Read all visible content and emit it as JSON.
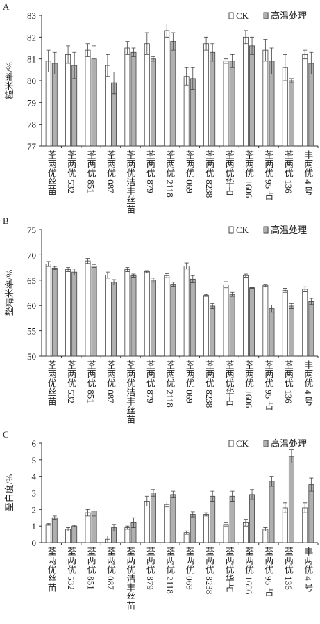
{
  "chart_data": [
    {
      "type": "bar",
      "label": "A",
      "y_label": "糙米率/%",
      "legend": "upper right",
      "categories": [
        "荃两优丝苗",
        "荃两优 532",
        "荃两优 851",
        "荃两优 087",
        "荃两优洁丰丝苗",
        "荃两优 879",
        "荃两优 2118",
        "荃两优 069",
        "荃两优 8238",
        "荃两优华占",
        "荃两优 1606",
        "荃两优 95 占",
        "荃两优 136",
        "丰两优 4 号"
      ],
      "ylim": [
        77,
        83
      ],
      "yticks": [
        77,
        78,
        79,
        80,
        81,
        82,
        83
      ],
      "series": [
        {
          "name": "CK",
          "color": "#ffffff",
          "values": [
            80.9,
            81.2,
            81.4,
            80.7,
            81.5,
            81.7,
            82.3,
            80.2,
            81.7,
            80.9,
            82.0,
            81.4,
            80.6,
            81.2
          ],
          "errors": [
            0.5,
            0.4,
            0.3,
            0.5,
            0.3,
            0.5,
            0.3,
            0.4,
            0.3,
            0.1,
            0.3,
            0.5,
            0.6,
            0.2
          ]
        },
        {
          "name": "高温处理",
          "color": "#b0b0b0",
          "values": [
            80.8,
            80.7,
            81.0,
            79.9,
            81.3,
            81.0,
            81.8,
            80.1,
            81.3,
            80.9,
            81.6,
            80.9,
            80.0,
            80.8
          ],
          "errors": [
            0.5,
            0.6,
            0.6,
            0.5,
            0.2,
            0.1,
            0.4,
            0.5,
            0.4,
            0.3,
            0.4,
            0.6,
            0.1,
            0.5
          ]
        }
      ]
    },
    {
      "type": "bar",
      "label": "B",
      "y_label": "整精米率/%",
      "legend": "upper right",
      "categories": [
        "荃两优丝苗",
        "荃两优 532",
        "荃两优 851",
        "荃两优 087",
        "荃两优洁丰丝苗",
        "荃两优 879",
        "荃两优 2118",
        "荃两优 069",
        "荃两优 8238",
        "荃两优华占",
        "荃两优 1606",
        "荃两优 95 占",
        "荃两优 136",
        "丰两优 4 号"
      ],
      "ylim": [
        50,
        75
      ],
      "yticks": [
        50,
        55,
        60,
        65,
        70,
        75
      ],
      "series": [
        {
          "name": "CK",
          "color": "#ffffff",
          "values": [
            68.2,
            67.1,
            68.8,
            66.0,
            67.1,
            66.7,
            65.9,
            67.8,
            62.0,
            64.1,
            65.9,
            64.0,
            63.0,
            63.2
          ],
          "errors": [
            0.5,
            0.4,
            0.5,
            0.6,
            0.4,
            0.2,
            0.4,
            0.6,
            0.2,
            0.6,
            0.3,
            0.2,
            0.4,
            0.5
          ]
        },
        {
          "name": "高温处理",
          "color": "#b0b0b0",
          "values": [
            67.4,
            66.6,
            67.8,
            64.6,
            65.9,
            65.0,
            64.2,
            65.2,
            59.9,
            62.2,
            63.5,
            59.4,
            59.9,
            60.8
          ],
          "errors": [
            0.3,
            0.6,
            0.3,
            0.5,
            0.3,
            0.4,
            0.4,
            0.7,
            0.5,
            0.4,
            0.1,
            0.7,
            0.5,
            0.6
          ]
        }
      ]
    },
    {
      "type": "bar",
      "label": "C",
      "y_label": "垩白度/%",
      "legend": "upper right",
      "categories": [
        "荃两优丝苗",
        "荃两优 532",
        "荃两优 851",
        "荃两优 087",
        "荃两优洁丰丝苗",
        "荃两优 879",
        "荃两优 2118",
        "荃两优 069",
        "荃两优 8238",
        "荃两优华占",
        "荃两优 1606",
        "荃两优 95 占",
        "荃两优 136",
        "丰两优 4 号"
      ],
      "ylim": [
        0,
        6
      ],
      "yticks": [
        0,
        1,
        2,
        3,
        4,
        5,
        6
      ],
      "series": [
        {
          "name": "CK",
          "color": "#ffffff",
          "values": [
            1.1,
            0.8,
            1.8,
            0.2,
            0.9,
            2.5,
            2.3,
            0.6,
            1.7,
            1.1,
            1.2,
            0.8,
            2.1,
            2.1
          ],
          "errors": [
            0.05,
            0.1,
            0.2,
            0.2,
            0.1,
            0.3,
            0.15,
            0.1,
            0.1,
            0.1,
            0.2,
            0.1,
            0.3,
            0.3
          ]
        },
        {
          "name": "高温处理",
          "color": "#b0b0b0",
          "values": [
            1.5,
            1.0,
            1.9,
            0.9,
            1.2,
            3.0,
            2.9,
            1.7,
            2.8,
            2.8,
            2.9,
            3.7,
            5.2,
            3.5
          ],
          "errors": [
            0.1,
            0.05,
            0.3,
            0.2,
            0.3,
            0.2,
            0.2,
            0.15,
            0.3,
            0.3,
            0.3,
            0.3,
            0.4,
            0.4
          ]
        }
      ]
    }
  ]
}
